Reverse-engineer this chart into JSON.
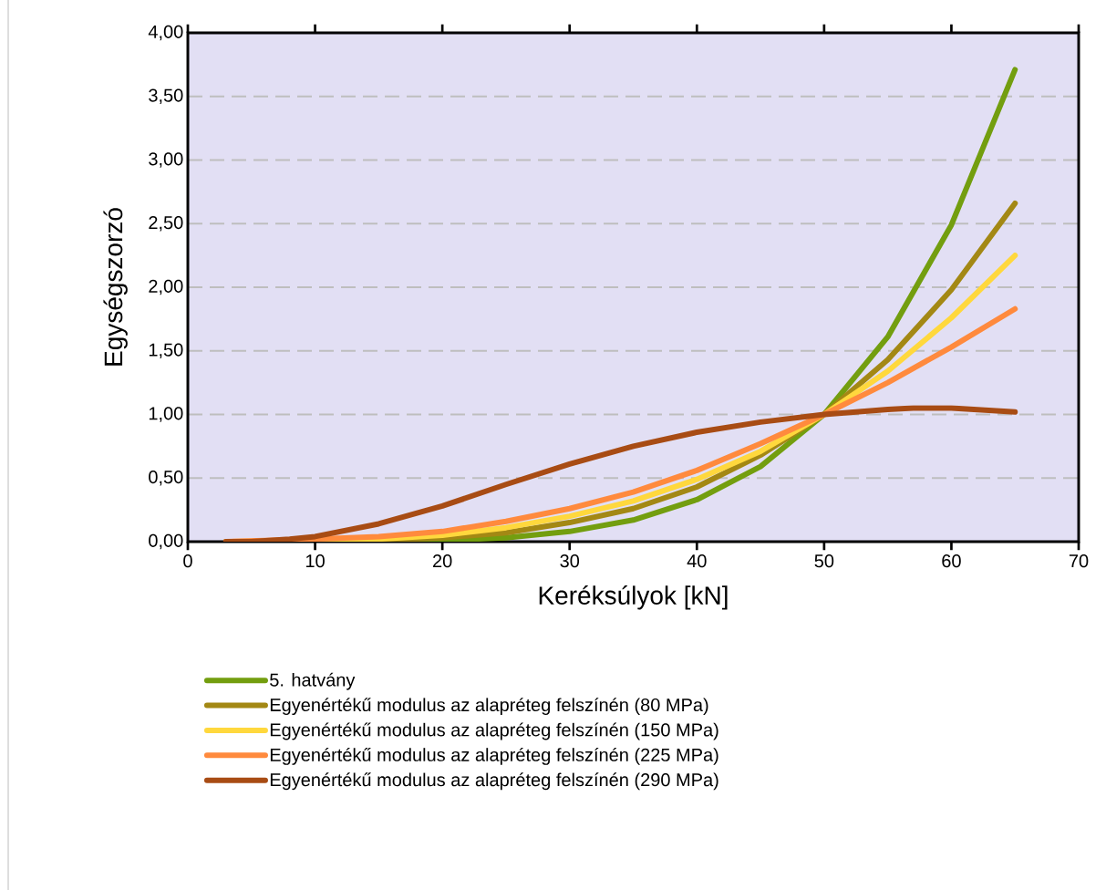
{
  "chart_data": {
    "type": "line",
    "xlabel": "Keréksúlyok [kN]",
    "ylabel": "Egységszorzó",
    "xlim": [
      0,
      70
    ],
    "xticks": [
      0,
      10,
      20,
      30,
      40,
      50,
      60,
      70
    ],
    "ylim": [
      0,
      4
    ],
    "yticks": [
      {
        "value": 0,
        "label": "0,00"
      },
      {
        "value": 0.5,
        "label": "0,50"
      },
      {
        "value": 1,
        "label": "1,00"
      },
      {
        "value": 1.5,
        "label": "1,50"
      },
      {
        "value": 2,
        "label": "2,00"
      },
      {
        "value": 2.5,
        "label": "2,50"
      },
      {
        "value": 3,
        "label": "3,00"
      },
      {
        "value": 3.5,
        "label": "3,50"
      },
      {
        "value": 4,
        "label": "4,00"
      }
    ],
    "grid": "y",
    "legend": "bottom",
    "marker": "none",
    "line_style": "solid",
    "series": [
      {
        "name": "5. hatvány",
        "color": "#739e0f",
        "x": [
          3,
          10,
          20,
          25,
          30,
          35,
          40,
          45,
          50,
          55,
          60,
          65
        ],
        "values": [
          0,
          0,
          0.01,
          0.03,
          0.08,
          0.17,
          0.33,
          0.59,
          1.0,
          1.61,
          2.49,
          3.71
        ]
      },
      {
        "name": "Egyenértékű modulus az alapréteg felszínén (80 MPa)",
        "color": "#a38814",
        "x": [
          3,
          10,
          15,
          20,
          25,
          30,
          35,
          40,
          45,
          50,
          55,
          60,
          65
        ],
        "values": [
          0,
          0,
          0.01,
          0.03,
          0.07,
          0.15,
          0.26,
          0.43,
          0.68,
          1.0,
          1.43,
          1.98,
          2.66
        ]
      },
      {
        "name": "Egyenértékű modulus az alapréteg felszínén (150 MPa)",
        "color": "#ffd83d",
        "x": [
          3,
          10,
          15,
          20,
          25,
          30,
          35,
          40,
          45,
          50,
          55,
          60,
          65
        ],
        "values": [
          0,
          0.01,
          0.02,
          0.05,
          0.11,
          0.2,
          0.32,
          0.49,
          0.71,
          1.0,
          1.34,
          1.76,
          2.25
        ]
      },
      {
        "name": "Egyenértékű modulus az alapréteg felszínén (225 MPa)",
        "color": "#ff8a3d",
        "x": [
          3,
          10,
          15,
          20,
          25,
          30,
          35,
          40,
          45,
          50,
          55,
          60,
          65
        ],
        "values": [
          0,
          0.02,
          0.04,
          0.08,
          0.16,
          0.26,
          0.39,
          0.56,
          0.77,
          1.0,
          1.25,
          1.53,
          1.83
        ]
      },
      {
        "name": "Egyenértékű modulus az alapréteg felszínén (290 MPa)",
        "color": "#a84c14",
        "x": [
          3,
          5,
          8,
          10,
          15,
          20,
          25,
          30,
          35,
          40,
          45,
          50,
          55,
          57,
          60,
          65
        ],
        "values": [
          0,
          0,
          0.02,
          0.04,
          0.14,
          0.28,
          0.45,
          0.61,
          0.75,
          0.86,
          0.94,
          1.0,
          1.04,
          1.05,
          1.05,
          1.02
        ]
      }
    ]
  }
}
